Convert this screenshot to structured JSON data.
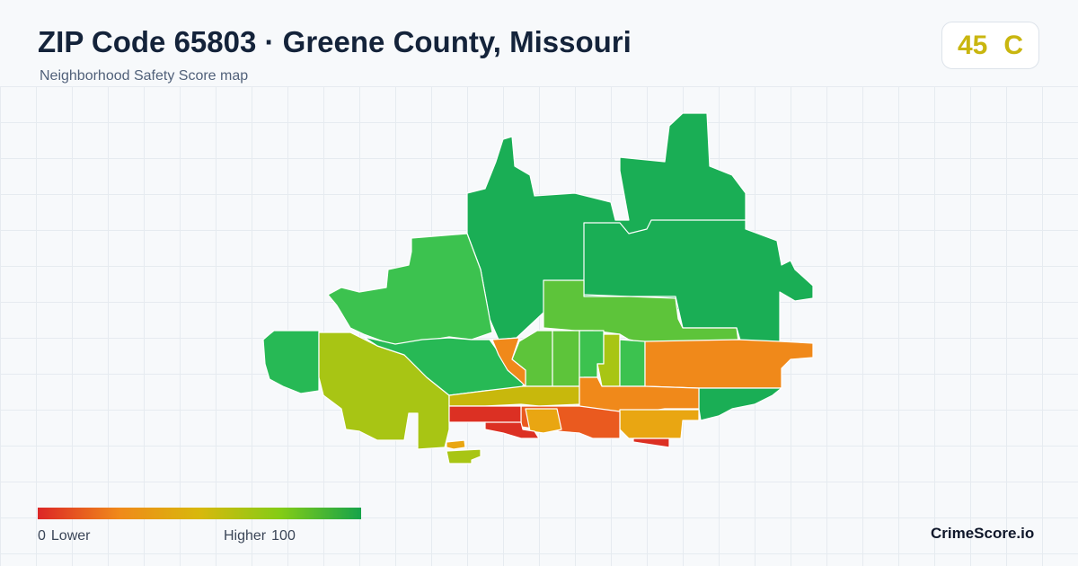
{
  "header": {
    "title": "ZIP Code 65803 · Greene County, Missouri",
    "subtitle": "Neighborhood Safety Score map"
  },
  "score": {
    "value": "45",
    "grade": "C",
    "color": "#c9b60f"
  },
  "legend": {
    "min_value": "0",
    "min_label": "Lower",
    "max_label": "Higher",
    "max_value": "100",
    "colors": [
      "#dc2626",
      "#f0891a",
      "#d8b80c",
      "#84cc16",
      "#16a34a"
    ]
  },
  "brand": "CrimeScore.io",
  "palette": {
    "dark_green": "#1aae55",
    "green": "#27b955",
    "mid_green": "#3cc24f",
    "light_green": "#5dc43a",
    "lime": "#7ec61f",
    "yellow_green": "#a8c514",
    "olive_yellow": "#c8b80c",
    "amber": "#e9a612",
    "orange": "#f0891a",
    "red_orange": "#ea5a1f",
    "red": "#dc3023"
  }
}
